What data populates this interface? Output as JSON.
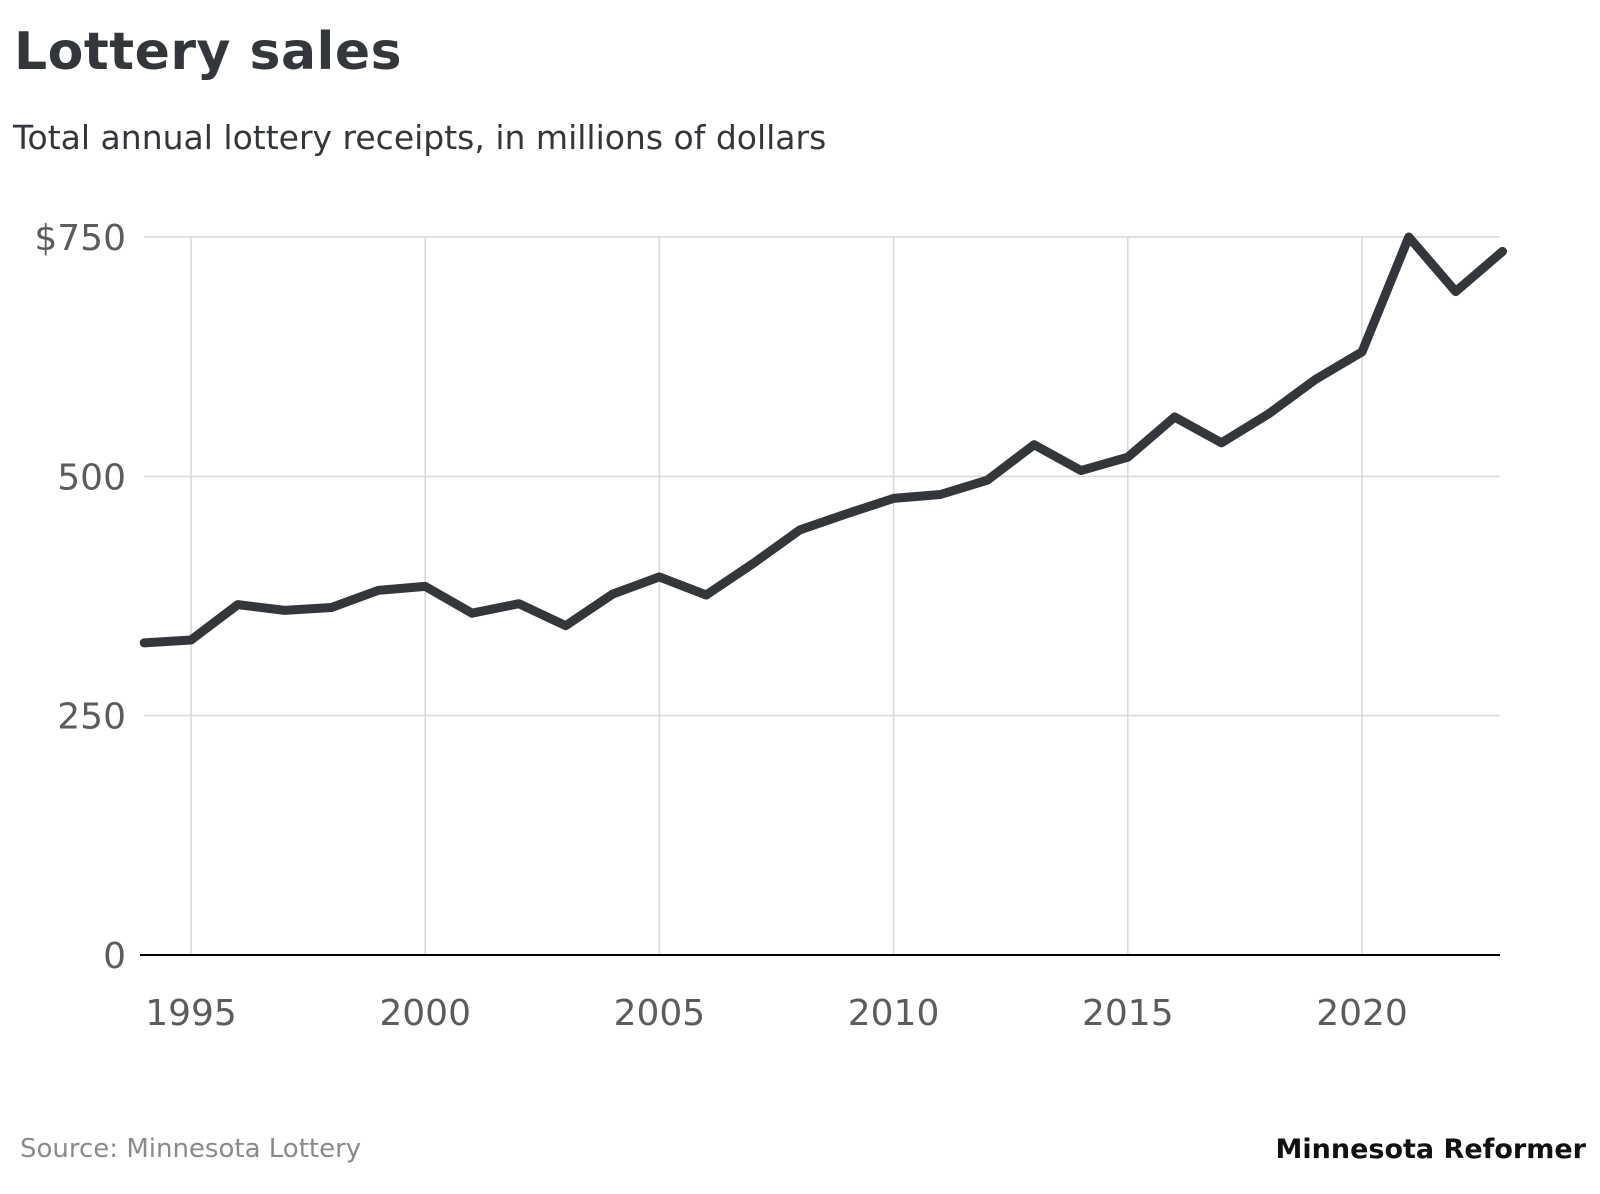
{
  "title": "Lottery sales",
  "subtitle": "Total annual lottery receipts, in millions of dollars",
  "source": "Source: Minnesota Lottery",
  "credit": "Minnesota Reformer",
  "colors": {
    "line": "#33363b",
    "grid": "#d7d7d7",
    "baseline": "#000000",
    "tick_label": "#5c5c5c"
  },
  "chart_data": {
    "type": "line",
    "title": "Lottery sales",
    "subtitle": "Total annual lottery receipts, in millions of dollars",
    "xlabel": "",
    "ylabel": "",
    "x": [
      1994,
      1995,
      1996,
      1997,
      1998,
      1999,
      2000,
      2001,
      2002,
      2003,
      2004,
      2005,
      2006,
      2007,
      2008,
      2009,
      2010,
      2011,
      2012,
      2013,
      2014,
      2015,
      2016,
      2017,
      2018,
      2019,
      2020,
      2021,
      2022,
      2023
    ],
    "series": [
      {
        "values": [
          326,
          329,
          366,
          360,
          363,
          381,
          385,
          357,
          367,
          344,
          377,
          395,
          376,
          409,
          444,
          461,
          477,
          481,
          496,
          533,
          506,
          520,
          562,
          535,
          565,
          601,
          630,
          750,
          693,
          735
        ]
      }
    ],
    "xlim": [
      1994,
      2023
    ],
    "ylim": [
      0,
      750
    ],
    "x_ticks": [
      1995,
      2000,
      2005,
      2010,
      2015,
      2020
    ],
    "x_tick_labels": [
      "1995",
      "2000",
      "2005",
      "2010",
      "2015",
      "2020"
    ],
    "y_ticks": [
      0,
      250,
      500,
      750
    ],
    "y_tick_labels": [
      "0",
      "250",
      "500",
      "$750"
    ],
    "grid": true,
    "legend": "none"
  }
}
